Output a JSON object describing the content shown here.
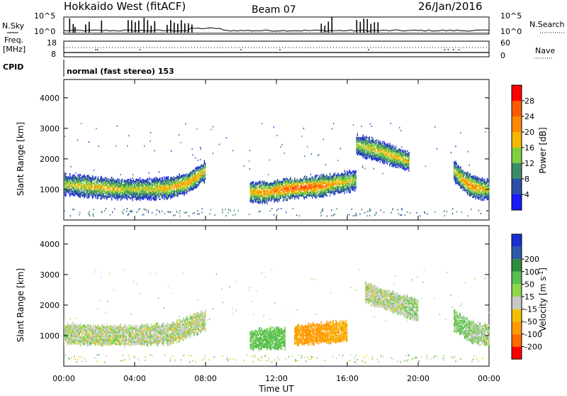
{
  "header": {
    "station": "Hokkaido West (fitACF)",
    "beam": "Beam 07",
    "date": "26/Jan/2016"
  },
  "top_panel": {
    "left_label_nsky": "N.Sky",
    "left_label_freq": "Freq.",
    "left_label_freq_unit": "[MHz]",
    "left_label_cpid": "CPID",
    "right_label_nsearch": "N.Search",
    "right_label_nave": "Nave",
    "noise_ticks_left": [
      "10^5",
      "10^0"
    ],
    "noise_ticks_right": [
      "10^5",
      "10^0"
    ],
    "freq_ticks": [
      "18",
      "8"
    ],
    "nave_ticks": [
      "60",
      "0"
    ],
    "cpid_text": "normal (fast stereo) 153"
  },
  "axes": {
    "xlabel": "Time UT",
    "ylabel": "Slant Range [km]",
    "x_ticks": [
      "00:00",
      "04:00",
      "08:00",
      "12:00",
      "16:00",
      "20:00",
      "00:00"
    ],
    "y_ticks": [
      "1000",
      "2000",
      "3000",
      "4000"
    ]
  },
  "power_colorbar": {
    "label": "Power [dB]",
    "ticks": [
      "4",
      "8",
      "12",
      "16",
      "20",
      "24",
      "28"
    ],
    "colors": [
      "#1a1aff",
      "#2a4fa8",
      "#3a8c6a",
      "#7fcf40",
      "#f5b800",
      "#ff8a00",
      "#ff5a00",
      "#ff0000"
    ]
  },
  "velocity_colorbar": {
    "label": "Velocity [m s^-1]",
    "ticks": [
      "200",
      "100",
      "50",
      "15",
      "-15",
      "-50",
      "-100",
      "-200"
    ],
    "colors": [
      "#1a2fd6",
      "#2d5aa8",
      "#2f8c3c",
      "#58c050",
      "#8ed84a",
      "#c8c8c8",
      "#f0c000",
      "#ff9a00",
      "#ff6a00",
      "#ff0000"
    ]
  },
  "chart_data": [
    {
      "type": "heatmap",
      "title": "Power",
      "xlabel": "Time UT",
      "ylabel": "Slant Range [km]",
      "xlim": [
        "00:00",
        "24:00"
      ],
      "ylim": [
        0,
        4600
      ],
      "colorbar": {
        "label": "Power [dB]",
        "range": [
          0,
          32
        ]
      },
      "series": [
        {
          "x": [
            0.0,
            1.0,
            2.0,
            3.0,
            4.0,
            5.0,
            6.0,
            7.0,
            8.0
          ],
          "y": [
            1150,
            1100,
            1050,
            1000,
            1000,
            1000,
            1050,
            1200,
            1600
          ],
          "values": [
            16,
            18,
            20,
            18,
            16,
            18,
            20,
            22,
            18
          ]
        },
        {
          "x": [
            10.5,
            11.5,
            12.5,
            13.5,
            14.5,
            15.5,
            16.5
          ],
          "y": [
            900,
            900,
            1000,
            1050,
            1100,
            1200,
            1300
          ],
          "values": [
            20,
            22,
            26,
            28,
            24,
            20,
            16
          ]
        },
        {
          "x": [
            16.5,
            17.5,
            18.5,
            19.5
          ],
          "y": [
            2450,
            2300,
            2100,
            1900
          ],
          "values": [
            16,
            18,
            20,
            18
          ]
        },
        {
          "x": [
            22.0,
            22.5,
            23.0,
            23.5,
            24.0
          ],
          "y": [
            1600,
            1300,
            1100,
            1000,
            1000
          ],
          "values": [
            16,
            22,
            24,
            20,
            18
          ]
        }
      ]
    },
    {
      "type": "heatmap",
      "title": "Velocity",
      "xlabel": "Time UT",
      "ylabel": "Slant Range [km]",
      "xlim": [
        "00:00",
        "24:00"
      ],
      "ylim": [
        0,
        4600
      ],
      "colorbar": {
        "label": "Velocity [m s^-1]",
        "range": [
          -200,
          200
        ]
      },
      "series": [
        {
          "x": [
            0.0,
            2.0,
            4.0,
            6.0,
            8.0
          ],
          "y": [
            1050,
            1000,
            1000,
            1050,
            1500
          ],
          "values": [
            0,
            0,
            0,
            0,
            0
          ]
        },
        {
          "x": [
            10.5,
            11.5,
            12.5
          ],
          "y": [
            850,
            900,
            900
          ],
          "values": [
            30,
            30,
            25
          ]
        },
        {
          "x": [
            13.0,
            14.0,
            15.0,
            16.0
          ],
          "y": [
            1000,
            1050,
            1100,
            1150
          ],
          "values": [
            -60,
            -80,
            -60,
            -50
          ]
        },
        {
          "x": [
            17.0,
            18.0,
            19.0,
            20.0
          ],
          "y": [
            2400,
            2200,
            2000,
            1800
          ],
          "values": [
            0,
            0,
            0,
            10
          ]
        },
        {
          "x": [
            22.0,
            23.0,
            24.0
          ],
          "y": [
            1500,
            1100,
            1000
          ],
          "values": [
            20,
            10,
            0
          ]
        }
      ]
    }
  ]
}
